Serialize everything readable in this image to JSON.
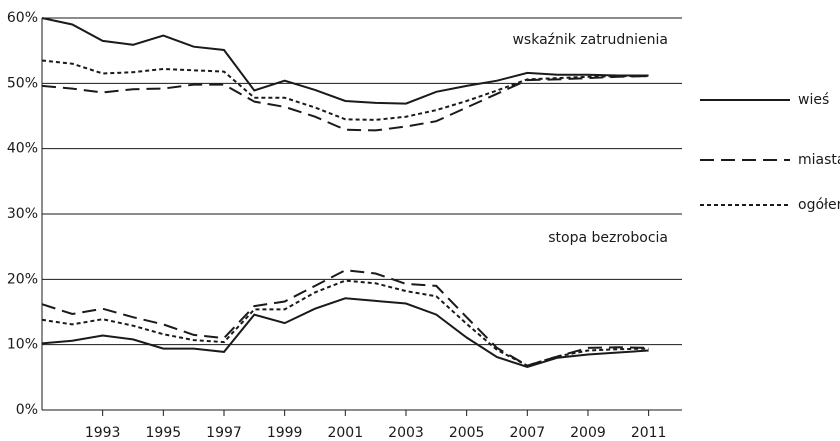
{
  "chart_data": {
    "type": "line",
    "x": [
      1991,
      1992,
      1993,
      1994,
      1995,
      1996,
      1997,
      1998,
      1999,
      2000,
      2001,
      2002,
      2003,
      2004,
      2005,
      2006,
      2007,
      2008,
      2009,
      2010,
      2011
    ],
    "series": [
      {
        "name": "wieś",
        "dash": "solid",
        "color": "#1a1a1a"
      },
      {
        "name": "miasta",
        "dash": "dashed",
        "color": "#1a1a1a"
      },
      {
        "name": "ogółem",
        "dash": "dotted",
        "color": "#1a1a1a"
      }
    ],
    "groups": [
      {
        "label": "wskaźnik zatrudnienia",
        "values": [
          [
            60,
            59,
            56.5,
            55.9,
            57.3,
            55.6,
            55.1,
            48.9,
            50.4,
            49,
            47.3,
            47,
            46.9,
            48.7,
            49.6,
            50.4,
            51.6,
            51.3,
            51.3,
            51.2,
            51.2
          ],
          [
            49.6,
            49.2,
            48.6,
            49.1,
            49.2,
            49.8,
            49.8,
            47.2,
            46.4,
            44.9,
            42.9,
            42.8,
            43.4,
            44.2,
            46.3,
            48.4,
            50.5,
            50.6,
            50.8,
            51,
            51.1
          ],
          [
            53.5,
            53,
            51.5,
            51.7,
            52.2,
            52,
            51.8,
            47.8,
            47.8,
            46.3,
            44.5,
            44.4,
            44.9,
            45.9,
            47.3,
            48.9,
            50.6,
            50.8,
            51,
            51.1,
            51.1
          ]
        ]
      },
      {
        "label": "stopa bezrobocia",
        "values": [
          [
            10.2,
            10.6,
            11.4,
            10.8,
            9.4,
            9.4,
            8.9,
            14.6,
            13.3,
            15.5,
            17.1,
            16.7,
            16.3,
            14.6,
            11.1,
            8.1,
            6.6,
            8,
            8.5,
            8.8,
            9.1
          ],
          [
            16.2,
            14.7,
            15.5,
            14.2,
            13.1,
            11.5,
            11,
            15.9,
            16.6,
            19,
            21.4,
            20.9,
            19.3,
            19,
            14.2,
            9.5,
            6.8,
            8.2,
            9.5,
            9.6,
            9.5
          ],
          [
            13.8,
            13.1,
            13.9,
            12.9,
            11.6,
            10.7,
            10.4,
            15.4,
            15.4,
            18,
            19.8,
            19.4,
            18.2,
            17.4,
            13.2,
            9.2,
            6.8,
            8.2,
            9.1,
            9.3,
            9.4
          ]
        ]
      }
    ],
    "xlim": [
      1991,
      2012.1
    ],
    "xticks": [
      1993,
      1995,
      1997,
      1999,
      2001,
      2003,
      2005,
      2007,
      2009,
      2011
    ],
    "ylim": [
      0,
      60
    ],
    "yticks": [
      {
        "value": 0,
        "label": "0%"
      },
      {
        "value": 10,
        "label": "10%"
      },
      {
        "value": 20,
        "label": "20%"
      },
      {
        "value": 30,
        "label": "30%"
      },
      {
        "value": 40,
        "label": "40%"
      },
      {
        "value": 50,
        "label": "50%"
      },
      {
        "value": 60,
        "label": "60%"
      }
    ],
    "grid": true
  }
}
